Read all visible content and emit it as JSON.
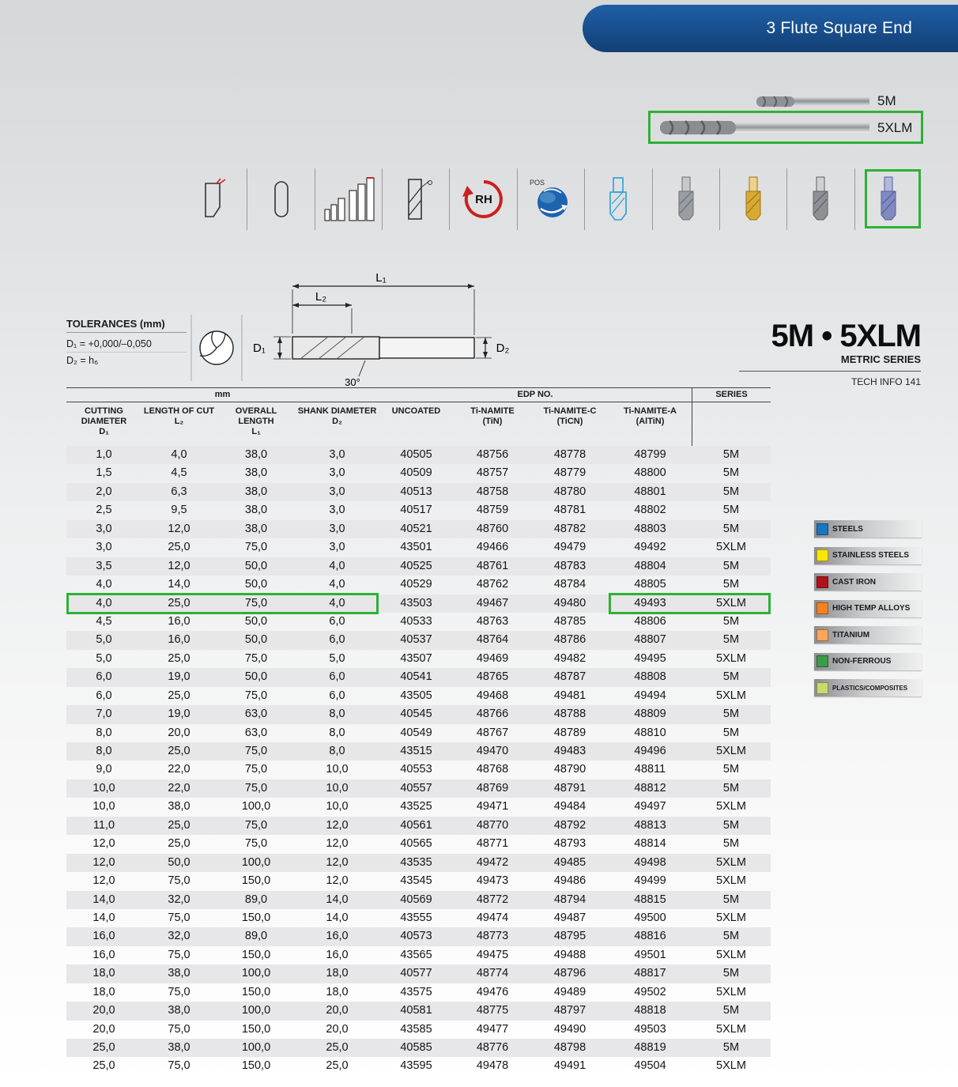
{
  "banner": {
    "title": "3 Flute Square End"
  },
  "products": [
    {
      "label": "5M"
    },
    {
      "label": "5XLM"
    }
  ],
  "icons": {
    "rh_label": "RH",
    "pos_label": "POS",
    "items": [
      "corner-profile-icon",
      "plain-shank-icon",
      "diameter-range-icon",
      "helix-angle-icon",
      "right-hand-cut-icon",
      "positioning-globe-icon",
      "center-cutting-icon",
      "uncoated-tool-icon",
      "tin-coated-tool-icon",
      "ticn-coated-tool-icon",
      "altin-coated-tool-icon"
    ]
  },
  "diagram": {
    "l1": "L₁",
    "l2": "L₂",
    "d1": "D₁",
    "d2": "D₂",
    "angle": "30°"
  },
  "tolerances": {
    "title": "TOLERANCES (mm)",
    "d1": "D₁  =  +0,000/–0,050",
    "d2": "D₂  =  h₆"
  },
  "series_title": {
    "main": "5M • 5XLM",
    "sub": "METRIC SERIES",
    "tech": "TECH INFO 141"
  },
  "table": {
    "group_headers": {
      "mm": "mm",
      "edp": "EDP NO.",
      "series": "SERIES"
    },
    "columns": [
      {
        "name": "CUTTING DIAMETER",
        "sym": "D₁"
      },
      {
        "name": "LENGTH OF CUT",
        "sym": "L₂"
      },
      {
        "name": "OVERALL LENGTH",
        "sym": "L₁"
      },
      {
        "name": "SHANK DIAMETER",
        "sym": "D₂"
      },
      {
        "name": "UNCOATED",
        "sym": ""
      },
      {
        "name": "Ti-NAMITE",
        "sym": "(TiN)"
      },
      {
        "name": "Ti-NAMITE-C",
        "sym": "(TiCN)"
      },
      {
        "name": "Ti-NAMITE-A",
        "sym": "(AlTiN)"
      }
    ],
    "rows": [
      [
        "1,0",
        "4,0",
        "38,0",
        "3,0",
        "40505",
        "48756",
        "48778",
        "48799",
        "5M"
      ],
      [
        "1,5",
        "4,5",
        "38,0",
        "3,0",
        "40509",
        "48757",
        "48779",
        "48800",
        "5M"
      ],
      [
        "2,0",
        "6,3",
        "38,0",
        "3,0",
        "40513",
        "48758",
        "48780",
        "48801",
        "5M"
      ],
      [
        "2,5",
        "9,5",
        "38,0",
        "3,0",
        "40517",
        "48759",
        "48781",
        "48802",
        "5M"
      ],
      [
        "3,0",
        "12,0",
        "38,0",
        "3,0",
        "40521",
        "48760",
        "48782",
        "48803",
        "5M"
      ],
      [
        "3,0",
        "25,0",
        "75,0",
        "3,0",
        "43501",
        "49466",
        "49479",
        "49492",
        "5XLM"
      ],
      [
        "3,5",
        "12,0",
        "50,0",
        "4,0",
        "40525",
        "48761",
        "48783",
        "48804",
        "5M"
      ],
      [
        "4,0",
        "14,0",
        "50,0",
        "4,0",
        "40529",
        "48762",
        "48784",
        "48805",
        "5M"
      ],
      [
        "4,0",
        "25,0",
        "75,0",
        "4,0",
        "43503",
        "49467",
        "49480",
        "49493",
        "5XLM"
      ],
      [
        "4,5",
        "16,0",
        "50,0",
        "6,0",
        "40533",
        "48763",
        "48785",
        "48806",
        "5M"
      ],
      [
        "5,0",
        "16,0",
        "50,0",
        "6,0",
        "40537",
        "48764",
        "48786",
        "48807",
        "5M"
      ],
      [
        "5,0",
        "25,0",
        "75,0",
        "5,0",
        "43507",
        "49469",
        "49482",
        "49495",
        "5XLM"
      ],
      [
        "6,0",
        "19,0",
        "50,0",
        "6,0",
        "40541",
        "48765",
        "48787",
        "48808",
        "5M"
      ],
      [
        "6,0",
        "25,0",
        "75,0",
        "6,0",
        "43505",
        "49468",
        "49481",
        "49494",
        "5XLM"
      ],
      [
        "7,0",
        "19,0",
        "63,0",
        "8,0",
        "40545",
        "48766",
        "48788",
        "48809",
        "5M"
      ],
      [
        "8,0",
        "20,0",
        "63,0",
        "8,0",
        "40549",
        "48767",
        "48789",
        "48810",
        "5M"
      ],
      [
        "8,0",
        "25,0",
        "75,0",
        "8,0",
        "43515",
        "49470",
        "49483",
        "49496",
        "5XLM"
      ],
      [
        "9,0",
        "22,0",
        "75,0",
        "10,0",
        "40553",
        "48768",
        "48790",
        "48811",
        "5M"
      ],
      [
        "10,0",
        "22,0",
        "75,0",
        "10,0",
        "40557",
        "48769",
        "48791",
        "48812",
        "5M"
      ],
      [
        "10,0",
        "38,0",
        "100,0",
        "10,0",
        "43525",
        "49471",
        "49484",
        "49497",
        "5XLM"
      ],
      [
        "11,0",
        "25,0",
        "75,0",
        "12,0",
        "40561",
        "48770",
        "48792",
        "48813",
        "5M"
      ],
      [
        "12,0",
        "25,0",
        "75,0",
        "12,0",
        "40565",
        "48771",
        "48793",
        "48814",
        "5M"
      ],
      [
        "12,0",
        "50,0",
        "100,0",
        "12,0",
        "43535",
        "49472",
        "49485",
        "49498",
        "5XLM"
      ],
      [
        "12,0",
        "75,0",
        "150,0",
        "12,0",
        "43545",
        "49473",
        "49486",
        "49499",
        "5XLM"
      ],
      [
        "14,0",
        "32,0",
        "89,0",
        "14,0",
        "40569",
        "48772",
        "48794",
        "48815",
        "5M"
      ],
      [
        "14,0",
        "75,0",
        "150,0",
        "14,0",
        "43555",
        "49474",
        "49487",
        "49500",
        "5XLM"
      ],
      [
        "16,0",
        "32,0",
        "89,0",
        "16,0",
        "40573",
        "48773",
        "48795",
        "48816",
        "5M"
      ],
      [
        "16,0",
        "75,0",
        "150,0",
        "16,0",
        "43565",
        "49475",
        "49488",
        "49501",
        "5XLM"
      ],
      [
        "18,0",
        "38,0",
        "100,0",
        "18,0",
        "40577",
        "48774",
        "48796",
        "48817",
        "5M"
      ],
      [
        "18,0",
        "75,0",
        "150,0",
        "18,0",
        "43575",
        "49476",
        "49489",
        "49502",
        "5XLM"
      ],
      [
        "20,0",
        "38,0",
        "100,0",
        "20,0",
        "40581",
        "48775",
        "48797",
        "48818",
        "5M"
      ],
      [
        "20,0",
        "75,0",
        "150,0",
        "20,0",
        "43585",
        "49477",
        "49490",
        "49503",
        "5XLM"
      ],
      [
        "25,0",
        "38,0",
        "100,0",
        "25,0",
        "40585",
        "48776",
        "48798",
        "48819",
        "5M"
      ],
      [
        "25,0",
        "75,0",
        "150,0",
        "25,0",
        "43595",
        "49478",
        "49491",
        "49504",
        "5XLM"
      ]
    ],
    "highlighted_row_index": 8
  },
  "legend": {
    "items": [
      {
        "label": "STEELS",
        "color": "#1b75bc"
      },
      {
        "label": "STAINLESS STEELS",
        "color": "#ffe600"
      },
      {
        "label": "CAST IRON",
        "color": "#b01219"
      },
      {
        "label": "HIGH TEMP ALLOYS",
        "color": "#f58220"
      },
      {
        "label": "TITANIUM",
        "color": "#f9a65a"
      },
      {
        "label": "NON-FERROUS",
        "color": "#3b9b49"
      },
      {
        "label": "PLASTICS/COMPOSITES",
        "color": "#c9da6e"
      }
    ]
  },
  "annotation_color": "#2eb135"
}
